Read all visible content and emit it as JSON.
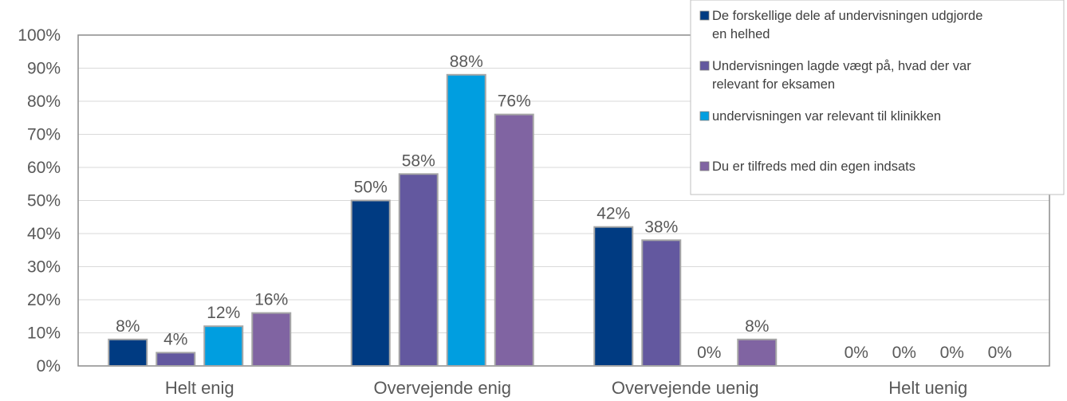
{
  "chart_data": {
    "type": "bar",
    "categories": [
      "Helt enig",
      "Overvejende enig",
      "Overvejende uenig",
      "Helt uenig"
    ],
    "series": [
      {
        "name": "De forskellige dele af undervisningen udgjorde en helhed",
        "legend_lines": [
          "De forskellige dele af undervisningen udgjorde",
          "en helhed"
        ],
        "color": "#003b82",
        "values": [
          8,
          50,
          42,
          0
        ]
      },
      {
        "name": "Undervisningen lagde vægt på, hvad der var relevant for eksamen",
        "legend_lines": [
          "Undervisningen lagde vægt på, hvad der var",
          "relevant for eksamen"
        ],
        "color": "#63589f",
        "values": [
          4,
          58,
          38,
          0
        ]
      },
      {
        "name": "undervisningen var relevant til klinikken",
        "legend_lines": [
          "undervisningen var relevant til klinikken"
        ],
        "color": "#009ee0",
        "values": [
          12,
          88,
          0,
          0
        ]
      },
      {
        "name": "Du er tilfreds med din egen indsats",
        "legend_lines": [
          "Du er tilfreds med din egen indsats"
        ],
        "color": "#8064a2",
        "values": [
          16,
          76,
          8,
          0
        ]
      }
    ],
    "data_labels": [
      [
        "8%",
        "50%",
        "42%",
        "0%"
      ],
      [
        "4%",
        "58%",
        "38%",
        "0%"
      ],
      [
        "12%",
        "88%",
        "0%",
        "0%"
      ],
      [
        "16%",
        "76%",
        "8%",
        "0%"
      ]
    ],
    "y_ticks": [
      "0%",
      "10%",
      "20%",
      "30%",
      "40%",
      "50%",
      "60%",
      "70%",
      "80%",
      "90%",
      "100%"
    ],
    "ylim": [
      0,
      100
    ],
    "y_unit": "%",
    "grid": true,
    "legend_position": "top-right",
    "title": "",
    "xlabel": "",
    "ylabel": ""
  }
}
